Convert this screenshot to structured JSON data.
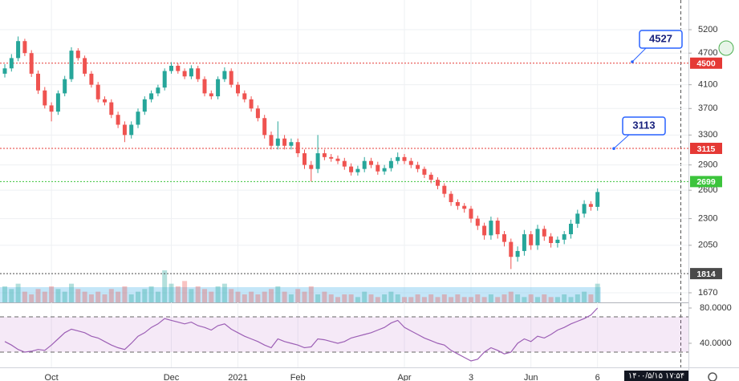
{
  "chart_data": {
    "type": "candlestick",
    "log_scale": true,
    "ylim": [
      1602,
      5911
    ],
    "yticks": [
      1670,
      2050,
      2300,
      2600,
      2900,
      3300,
      3700,
      4100,
      4700,
      5200
    ],
    "grid": true,
    "up_color": "#26a69a",
    "down_color": "#ef5350",
    "open": [
      4300,
      4400,
      4600,
      4950,
      4700,
      4300,
      4000,
      3750,
      3650,
      3950,
      4200,
      4750,
      4600,
      4300,
      4100,
      3850,
      3800,
      3600,
      3450,
      3300,
      3450,
      3650,
      3850,
      3950,
      4050,
      4350,
      4450,
      4350,
      4250,
      4400,
      4200,
      3950,
      3900,
      4200,
      4350,
      4100,
      3950,
      3850,
      3700,
      3550,
      3300,
      3150,
      3250,
      3150,
      3200,
      3050,
      2900,
      2850,
      3050,
      3000,
      2980,
      2950,
      2880,
      2810,
      2850,
      2950,
      2900,
      2820,
      2860,
      2950,
      3000,
      2950,
      2900,
      2850,
      2780,
      2720,
      2650,
      2560,
      2470,
      2430,
      2400,
      2300,
      2230,
      2140,
      2280,
      2150,
      2080,
      1950,
      2000,
      2150,
      2050,
      2200,
      2130,
      2070,
      2100,
      2150,
      2250,
      2350,
      2450,
      2420
    ],
    "high": [
      4480,
      4680,
      5050,
      5000,
      4760,
      4360,
      4060,
      3800,
      4000,
      4260,
      4820,
      4800,
      4650,
      4350,
      4150,
      3900,
      3850,
      3650,
      3500,
      3500,
      3700,
      3900,
      4000,
      4100,
      4400,
      4520,
      4500,
      4400,
      4460,
      4450,
      4250,
      4000,
      4250,
      4420,
      4400,
      4150,
      4000,
      3900,
      3750,
      3600,
      3350,
      3500,
      3300,
      3250,
      3250,
      3100,
      2950,
      3300,
      3100,
      3040,
      3020,
      2990,
      2920,
      2890,
      3000,
      2990,
      2940,
      2900,
      2990,
      3060,
      3040,
      2990,
      2940,
      2880,
      2810,
      2750,
      2680,
      2590,
      2500,
      2460,
      2430,
      2330,
      2260,
      2320,
      2310,
      2180,
      2110,
      2040,
      2190,
      2180,
      2240,
      2230,
      2160,
      2130,
      2180,
      2290,
      2390,
      2490,
      2480,
      2620
    ],
    "low": [
      4230,
      4340,
      4540,
      4640,
      4240,
      3940,
      3700,
      3500,
      3600,
      3900,
      4150,
      4550,
      4250,
      4050,
      3800,
      3750,
      3550,
      3400,
      3200,
      3250,
      3400,
      3600,
      3800,
      3900,
      4000,
      4300,
      4300,
      4200,
      4200,
      4150,
      3900,
      3850,
      3850,
      4150,
      4050,
      3900,
      3800,
      3650,
      3500,
      3250,
      3100,
      3100,
      3100,
      3100,
      3000,
      2850,
      2700,
      2800,
      2960,
      2940,
      2910,
      2840,
      2770,
      2770,
      2810,
      2860,
      2780,
      2780,
      2820,
      2910,
      2910,
      2860,
      2810,
      2740,
      2680,
      2610,
      2520,
      2430,
      2390,
      2360,
      2260,
      2190,
      2100,
      2100,
      2110,
      2040,
      1850,
      1910,
      1960,
      2010,
      2010,
      2090,
      2030,
      2030,
      2060,
      2110,
      2210,
      2310,
      2380,
      2380
    ],
    "close": [
      4400,
      4600,
      4950,
      4700,
      4300,
      4000,
      3750,
      3650,
      3950,
      4200,
      4750,
      4600,
      4300,
      4100,
      3850,
      3800,
      3600,
      3450,
      3300,
      3450,
      3650,
      3850,
      3950,
      4050,
      4350,
      4450,
      4350,
      4250,
      4400,
      4200,
      3950,
      3900,
      4200,
      4350,
      4100,
      3950,
      3850,
      3700,
      3550,
      3300,
      3150,
      3250,
      3150,
      3200,
      3050,
      2900,
      2850,
      3050,
      3000,
      2980,
      2950,
      2880,
      2810,
      2850,
      2950,
      2900,
      2820,
      2860,
      2950,
      3000,
      2950,
      2900,
      2850,
      2780,
      2720,
      2650,
      2560,
      2470,
      2430,
      2400,
      2300,
      2230,
      2140,
      2280,
      2150,
      2080,
      1950,
      2000,
      2150,
      2050,
      2200,
      2130,
      2070,
      2100,
      2150,
      2250,
      2350,
      2450,
      2420,
      2580
    ],
    "volume": [
      6,
      5,
      7,
      4,
      3,
      5,
      4,
      6,
      5,
      4,
      7,
      5,
      4,
      3,
      4,
      3,
      5,
      4,
      6,
      3,
      4,
      5,
      6,
      4,
      12,
      7,
      6,
      8,
      5,
      6,
      5,
      4,
      6,
      7,
      5,
      4,
      3,
      4,
      3,
      4,
      5,
      6,
      4,
      3,
      5,
      4,
      6,
      3,
      4,
      3,
      2,
      3,
      3,
      2,
      4,
      3,
      2,
      3,
      4,
      3,
      2,
      2,
      3,
      2,
      3,
      2,
      3,
      2,
      3,
      2,
      2,
      3,
      2,
      3,
      2,
      3,
      4,
      3,
      2,
      3,
      2,
      3,
      2,
      2,
      3,
      2,
      3,
      4,
      3,
      7
    ],
    "levels": [
      {
        "value": 4500,
        "color": "#e53935"
      },
      {
        "value": 3115,
        "color": "#e53935"
      },
      {
        "value": 2699,
        "color": "#3cc43c"
      },
      {
        "value": 1814,
        "color": "#4a4a4a"
      }
    ],
    "annotations": [
      {
        "value": 4527
      },
      {
        "value": 3113
      }
    ],
    "time_labels": [
      "Oct",
      "Dec",
      "2021",
      "Feb",
      "Apr",
      "3",
      "Jun",
      "6"
    ],
    "date_label": "۱۴۰۰/۵/۱۵ ۱۷:۵۴",
    "rsi": {
      "color": "#9c5fb5",
      "ylim": [
        12.7,
        85.45
      ],
      "yticks": [
        {
          "value": 80,
          "label": "80.0000"
        },
        {
          "value": 40,
          "label": "40.0000"
        }
      ],
      "band": [
        30,
        70
      ],
      "values": [
        42,
        38,
        33,
        30,
        31,
        33,
        32,
        38,
        45,
        52,
        56,
        54,
        52,
        48,
        46,
        42,
        38,
        35,
        33,
        40,
        48,
        52,
        58,
        62,
        68,
        66,
        64,
        62,
        64,
        60,
        58,
        55,
        60,
        62,
        56,
        52,
        48,
        45,
        42,
        38,
        35,
        45,
        42,
        40,
        38,
        35,
        36,
        45,
        44,
        42,
        40,
        42,
        46,
        48,
        50,
        52,
        55,
        58,
        63,
        66,
        58,
        54,
        50,
        46,
        43,
        40,
        38,
        32,
        28,
        24,
        20,
        22,
        30,
        35,
        32,
        28,
        30,
        40,
        45,
        42,
        48,
        46,
        50,
        55,
        58,
        62,
        65,
        68,
        72,
        80
      ]
    }
  }
}
